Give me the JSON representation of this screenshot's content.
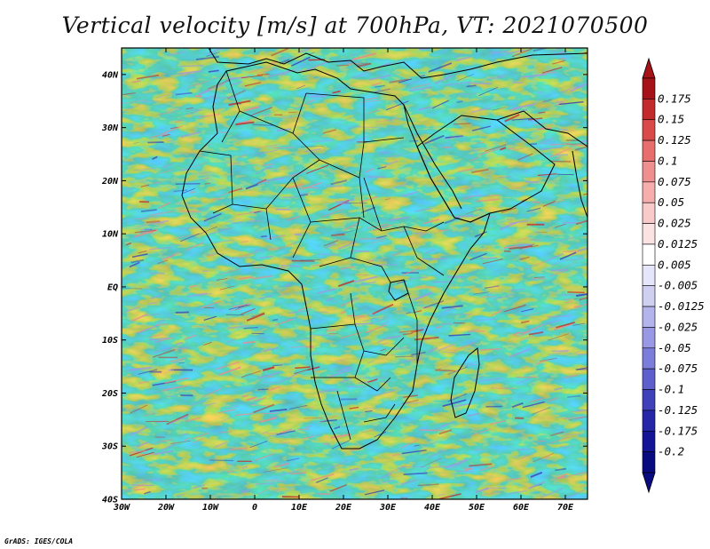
{
  "title": "Vertical velocity [m/s] at 700hPa, VT: 2021070500",
  "credit": "GrADS: IGES/COLA",
  "map": {
    "lon_labels": [
      "30W",
      "20W",
      "10W",
      "0",
      "10E",
      "20E",
      "30E",
      "40E",
      "50E",
      "60E",
      "70E"
    ],
    "lat_labels": [
      "40N",
      "30N",
      "20N",
      "10N",
      "EQ",
      "10S",
      "20S",
      "30S",
      "40S"
    ],
    "lon_range": [
      -30,
      75
    ],
    "lat_range": [
      -40,
      45
    ]
  },
  "colorbar": {
    "labels": [
      "0.175",
      "0.15",
      "0.125",
      "0.1",
      "0.075",
      "0.05",
      "0.025",
      "0.0125",
      "0.005",
      "-0.005",
      "-0.0125",
      "-0.025",
      "-0.05",
      "-0.075",
      "-0.1",
      "-0.125",
      "-0.175",
      "-0.2"
    ],
    "colors": [
      "#a51218",
      "#c22a2c",
      "#d94a4a",
      "#e86e6e",
      "#f08f8f",
      "#f5adad",
      "#f9caca",
      "#fce3e3",
      "#ffffff",
      "#e6e6fa",
      "#cfcff2",
      "#b4b4ec",
      "#9898e4",
      "#7c7cda",
      "#5e5ecc",
      "#4040bb",
      "#2626a8",
      "#141496",
      "#0a0a80"
    ]
  },
  "colors": {
    "land_border": "#000000",
    "positive": "#d94a4a",
    "negative": "#6a6ad6"
  }
}
